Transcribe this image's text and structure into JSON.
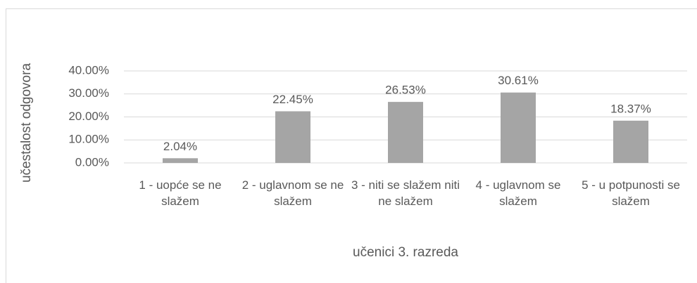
{
  "chart_data": {
    "type": "bar",
    "categories": [
      "1 - uopće se ne slažem",
      "2 - uglavnom se ne slažem",
      "3 - niti se slažem niti ne slažem",
      "4 - uglavnom se slažem",
      "5 - u potpunosti se slažem"
    ],
    "values": [
      2.04,
      22.45,
      26.53,
      30.61,
      18.37
    ],
    "value_labels": [
      "2.04%",
      "22.45%",
      "26.53%",
      "30.61%",
      "18.37%"
    ],
    "color": "#a5a5a5",
    "xlabel": "učenici 3. razreda",
    "ylabel": "učestalost odgovora",
    "ylim": [
      0,
      40
    ],
    "yticks": [
      {
        "value": 0,
        "label": "0.00%"
      },
      {
        "value": 10,
        "label": "10.00%"
      },
      {
        "value": 20,
        "label": "20.00%"
      },
      {
        "value": 30,
        "label": "30.00%"
      },
      {
        "value": 40,
        "label": "40.00%"
      }
    ],
    "grid": true
  }
}
